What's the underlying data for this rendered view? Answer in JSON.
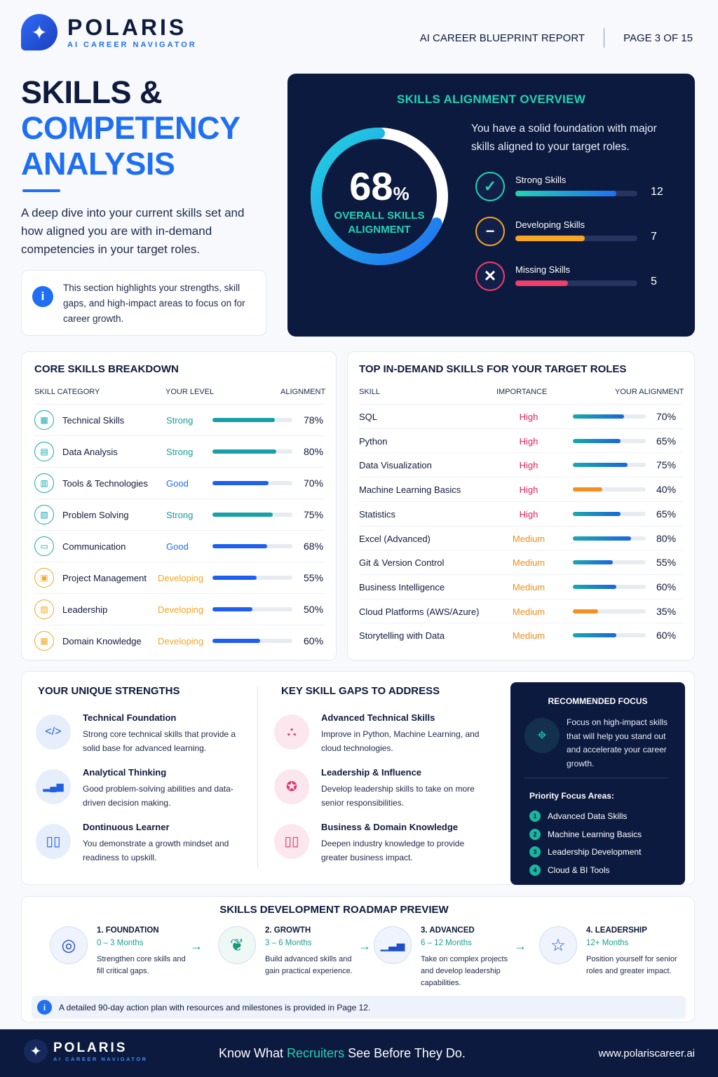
{
  "header": {
    "brand": "POLARIS",
    "brand_sub": "AI CAREER NAVIGATOR",
    "report": "AI CAREER BLUEPRINT REPORT",
    "page": "PAGE 3 OF 15"
  },
  "hero": {
    "title_l1": "SKILLS &",
    "title_l2": "COMPETENCY",
    "title_l3": "ANALYSIS",
    "desc": "A deep dive into your current skills set and how aligned you are with in-demand competencies in your target roles.",
    "info": "This section highlights your strengths, skill gaps, and high-impact areas to focus on for career growth."
  },
  "overview": {
    "title": "SKILLS ALIGNMENT OVERVIEW",
    "value": "68",
    "unit": "%",
    "value_pct": 68,
    "label_l1": "OVERALL SKILLS",
    "label_l2": "ALIGNMENT",
    "desc": "You have a solid foundation with major skills aligned to your target roles.",
    "rows": [
      {
        "label": "Strong Skills",
        "count": "12",
        "icon": "check-icon",
        "fill": 0.83,
        "color": "#22d3b6"
      },
      {
        "label": "Developing Skills",
        "count": "7",
        "icon": "minus-icon",
        "fill": 0.57,
        "color": "#f5a623"
      },
      {
        "label": "Missing Skills",
        "count": "5",
        "icon": "x-icon",
        "fill": 0.43,
        "color": "#ef3f6b"
      }
    ]
  },
  "core": {
    "title": "CORE SKILLS BREAKDOWN",
    "col1": "SKILL CATEGORY",
    "col2": "YOUR LEVEL",
    "col3": "ALIGNMENT",
    "rows": [
      {
        "name": "Technical Skills",
        "level": "Strong",
        "pct": "78%",
        "value": 78,
        "kind": "strong"
      },
      {
        "name": "Data Analysis",
        "level": "Strong",
        "pct": "80%",
        "value": 80,
        "kind": "strong"
      },
      {
        "name": "Tools & Technologies",
        "level": "Good",
        "pct": "70%",
        "value": 70,
        "kind": "good"
      },
      {
        "name": "Problem Solving",
        "level": "Strong",
        "pct": "75%",
        "value": 75,
        "kind": "strong"
      },
      {
        "name": "Communication",
        "level": "Good",
        "pct": "68%",
        "value": 68,
        "kind": "good"
      },
      {
        "name": "Project Management",
        "level": "Developing",
        "pct": "55%",
        "value": 55,
        "kind": "developing"
      },
      {
        "name": "Leadership",
        "level": "Developing",
        "pct": "50%",
        "value": 50,
        "kind": "developing"
      },
      {
        "name": "Domain Knowledge",
        "level": "Developing",
        "pct": "60%",
        "value": 60,
        "kind": "developing"
      }
    ]
  },
  "demand": {
    "title": "TOP IN-DEMAND SKILLS FOR YOUR TARGET ROLES",
    "col1": "SKILL",
    "col2": "IMPORTANCE",
    "col3": "YOUR ALIGNMENT",
    "rows": [
      {
        "name": "SQL",
        "imp": "High",
        "pct": "70%",
        "value": 70
      },
      {
        "name": "Python",
        "imp": "High",
        "pct": "65%",
        "value": 65
      },
      {
        "name": "Data Visualization",
        "imp": "High",
        "pct": "75%",
        "value": 75
      },
      {
        "name": "Machine Learning Basics",
        "imp": "High",
        "pct": "40%",
        "value": 40
      },
      {
        "name": "Statistics",
        "imp": "High",
        "pct": "65%",
        "value": 65
      },
      {
        "name": "Excel (Advanced)",
        "imp": "Medium",
        "pct": "80%",
        "value": 80
      },
      {
        "name": "Git & Version Control",
        "imp": "Medium",
        "pct": "55%",
        "value": 55
      },
      {
        "name": "Business Intelligence",
        "imp": "Medium",
        "pct": "60%",
        "value": 60
      },
      {
        "name": "Cloud Platforms (AWS/Azure)",
        "imp": "Medium",
        "pct": "35%",
        "value": 35
      },
      {
        "name": "Storytelling with Data",
        "imp": "Medium",
        "pct": "60%",
        "value": 60
      }
    ]
  },
  "strengths": {
    "title": "YOUR UNIQUE STRENGTHS",
    "items": [
      {
        "h": "Technical Foundation",
        "p": "Strong core technical skills that provide a solid base for advanced learning.",
        "icon": "code-icon"
      },
      {
        "h": "Analytical Thinking",
        "p": "Good problem-solving abilities and data-driven decision making.",
        "icon": "bar-chart-icon"
      },
      {
        "h": "Dontinuous Learner",
        "p": "You demonstrate a growth mindset and readiness to upskill.",
        "icon": "book-icon"
      }
    ]
  },
  "gaps": {
    "title": "KEY SKILL GAPS TO ADDRESS",
    "items": [
      {
        "h": "Advanced Technical Skills",
        "p": "Improve in Python, Machine Learning, and cloud technologies.",
        "icon": "network-icon"
      },
      {
        "h": "Leadership & Influence",
        "p": "Develop leadership skills to take on more senior responsibilities.",
        "icon": "badge-icon"
      },
      {
        "h": "Business & Domain Knowledge",
        "p": "Deepen industry knowledge to provide greater business impact.",
        "icon": "book-icon"
      }
    ]
  },
  "focus": {
    "title": "RECOMMENDED FOCUS",
    "desc": "Focus on high-impact skills that will help you stand out and accelerate your career growth.",
    "sub": "Priority Focus Areas:",
    "items": [
      {
        "n": "1",
        "t": "Advanced Data Skills"
      },
      {
        "n": "2",
        "t": "Machine Learning Basics"
      },
      {
        "n": "3",
        "t": "Leadership Development"
      },
      {
        "n": "4",
        "t": "Cloud & BI Tools"
      }
    ]
  },
  "roadmap": {
    "title": "SKILLS DEVELOPMENT ROADMAP PREVIEW",
    "steps": [
      {
        "h": "1. FOUNDATION",
        "t": "0 – 3 Months",
        "p": "Strengthen core skills and fill critical gaps.",
        "icon": "target-icon"
      },
      {
        "h": "2. GROWTH",
        "t": "3 – 6 Months",
        "p": "Build advanced skills and gain practical experience.",
        "icon": "sprout-icon"
      },
      {
        "h": "3. ADVANCED",
        "t": "6 – 12 Months",
        "p": "Take on complex projects and develop leadership capabilities.",
        "icon": "chart-up-icon"
      },
      {
        "h": "4. LEADERSHIP",
        "t": "12+ Months",
        "p": "Position yourself for senior roles and greater impact.",
        "icon": "star-icon"
      }
    ],
    "note": "A detailed 90-day action plan with resources and milestones is provided in Page 12."
  },
  "footer": {
    "brand": "POLARIS",
    "brand_sub": "AI CAREER NAVIGATOR",
    "tag_a": "Know What ",
    "tag_hl": "Recruiters",
    "tag_b": " See Before They Do.",
    "url": "www.polariscareer.ai"
  }
}
